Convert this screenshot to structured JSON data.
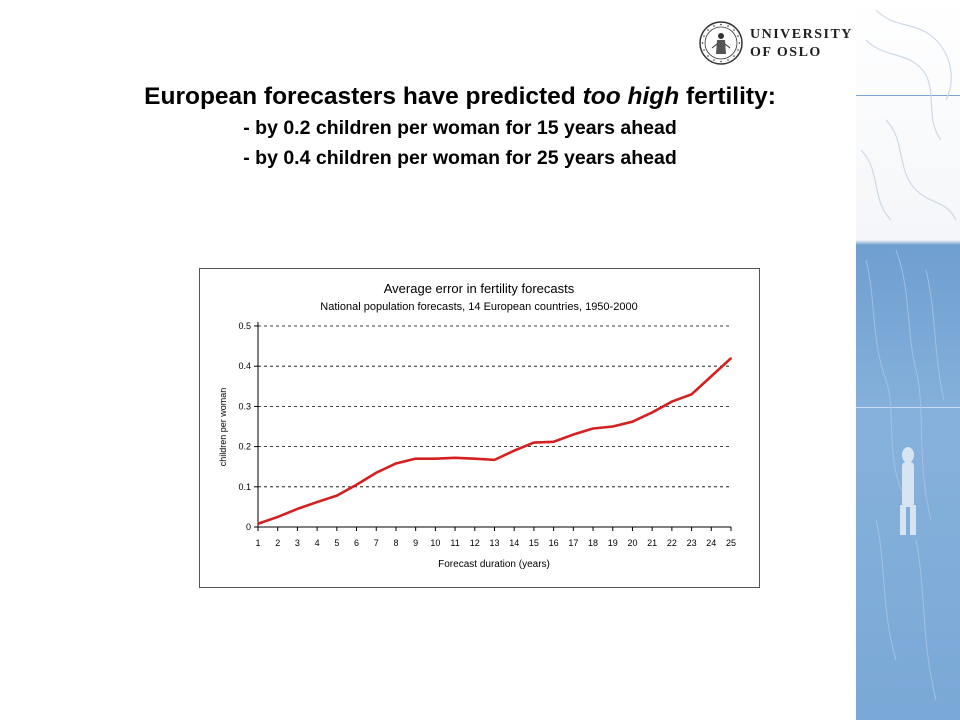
{
  "logo": {
    "line1": "UNIVERSITY",
    "line2": "OF OSLO"
  },
  "slide": {
    "title_part1": "European forecasters have predicted ",
    "title_italic": "too high",
    "title_part2": " fertility:",
    "bullet1": "- by 0.2 children per woman for 15 years ahead",
    "bullet2": "- by 0.4 children per woman for 25 years ahead"
  },
  "colors": {
    "series": "#d42020",
    "band": "#7aa8d6"
  },
  "chart_data": {
    "type": "line",
    "title": "Average error in fertility forecasts",
    "subtitle": "National population forecasts, 14 European countries, 1950-2000",
    "xlabel": "Forecast duration (years)",
    "ylabel": "children per woman",
    "categories": [
      "1",
      "2",
      "3",
      "4",
      "5",
      "6",
      "7",
      "8",
      "9",
      "10",
      "11",
      "12",
      "13",
      "14",
      "15",
      "16",
      "17",
      "18",
      "19",
      "20",
      "21",
      "22",
      "23",
      "24",
      "25"
    ],
    "series": [
      {
        "values": [
          0.008,
          0.025,
          0.045,
          0.062,
          0.078,
          0.105,
          0.135,
          0.158,
          0.17,
          0.17,
          0.172,
          0.17,
          0.167,
          0.19,
          0.21,
          0.212,
          0.23,
          0.245,
          0.25,
          0.262,
          0.285,
          0.312,
          0.33,
          0.375,
          0.42
        ]
      }
    ],
    "ylim": [
      0,
      0.5
    ],
    "yticks": [
      "0",
      "0.1",
      "0.2",
      "0.3",
      "0.4",
      "0.5"
    ],
    "grid": "dashed horizontal",
    "legend": "none"
  }
}
